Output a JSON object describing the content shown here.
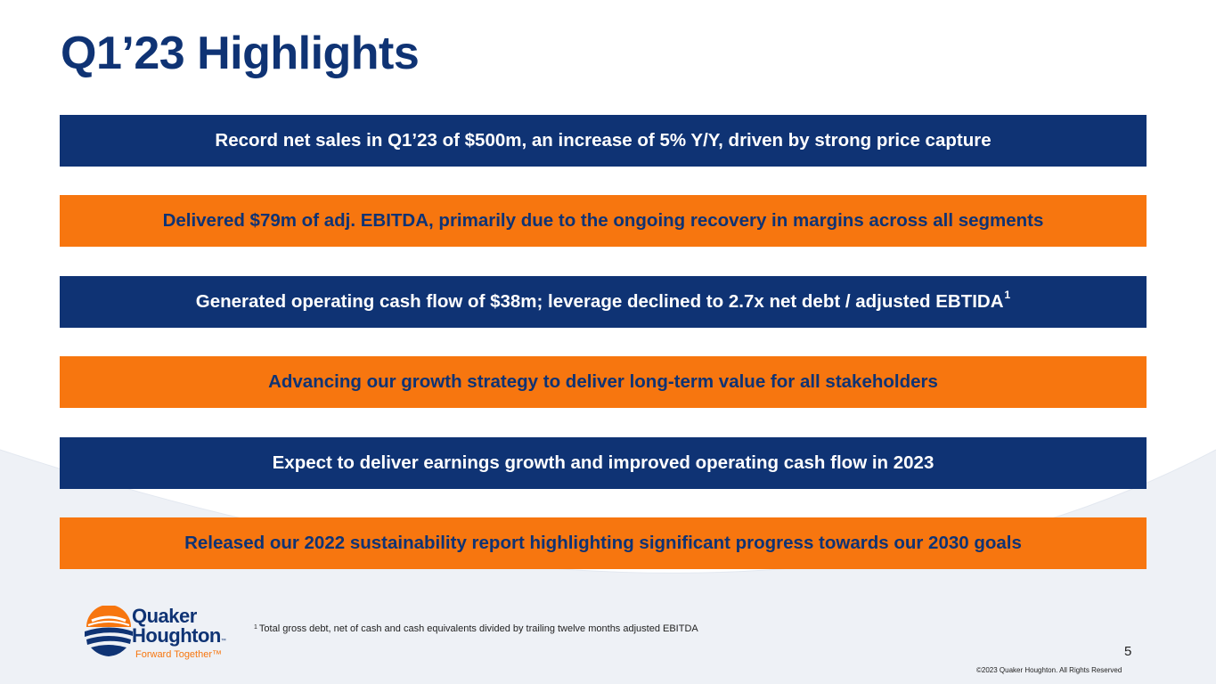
{
  "slide": {
    "title": "Q1’23 Highlights",
    "page_number": "5",
    "copyright": "©2023 Quaker Houghton. All Rights Reserved"
  },
  "highlights": [
    {
      "text": "Record net sales in Q1’23 of $500m, an increase of 5% Y/Y, driven by strong price capture",
      "style": "navy"
    },
    {
      "text": "Delivered $79m of adj. EBITDA, primarily due to the ongoing recovery in margins across all segments",
      "style": "orange"
    },
    {
      "text": "Generated operating cash flow of $38m; leverage declined to 2.7x net debt / adjusted EBTIDA",
      "superscript": "1",
      "style": "navy"
    },
    {
      "text": "Advancing our growth strategy to deliver long-term value for all stakeholders",
      "style": "orange"
    },
    {
      "text": "Expect to deliver earnings growth and improved operating cash flow in 2023",
      "style": "navy"
    },
    {
      "text": "Released our 2022 sustainability report highlighting significant progress towards our 2030 goals",
      "style": "orange"
    }
  ],
  "footnote": {
    "marker": "1",
    "text": "Total gross debt, net of cash and cash equivalents divided by trailing twelve months adjusted EBITDA"
  },
  "logo": {
    "line1": "Quaker",
    "line2": "Houghton",
    "tm": "™",
    "tagline": "Forward Together™"
  },
  "colors": {
    "navy": "#0f3374",
    "orange": "#f7760f",
    "background_swoosh": "#eef1f6"
  },
  "icons": {
    "logo_mark": "quaker-houghton-logo-icon"
  }
}
